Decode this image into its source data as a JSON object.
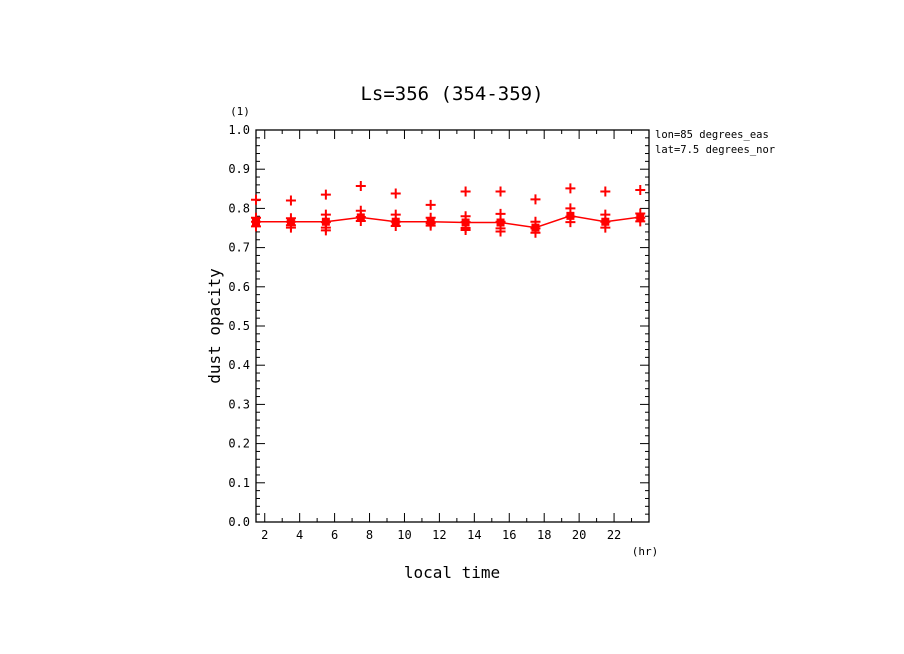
{
  "chart_data": {
    "type": "line",
    "title": "Ls=356 (354-359)",
    "xlabel": "local time",
    "ylabel": "dust opacity",
    "x_unit": "(hr)",
    "y_unit": "(1)",
    "annotations": [
      "lon=85 degrees_eas",
      "lat=7.5 degrees_nor"
    ],
    "xlim": [
      1.5,
      24.0
    ],
    "ylim": [
      0.0,
      1.0
    ],
    "xticks": [
      2,
      4,
      6,
      8,
      10,
      12,
      14,
      16,
      18,
      20,
      22
    ],
    "yticks": [
      0.0,
      0.1,
      0.2,
      0.3,
      0.4,
      0.5,
      0.6,
      0.7,
      0.8,
      0.9,
      1.0
    ],
    "grid": false,
    "line_color": "#ff0000",
    "series": [
      {
        "kind": "line",
        "x": [
          1.5,
          3.5,
          5.5,
          7.5,
          9.5,
          11.5,
          13.5,
          15.5,
          17.5,
          19.5,
          21.5,
          23.5
        ],
        "y": [
          0.766,
          0.766,
          0.766,
          0.777,
          0.766,
          0.766,
          0.764,
          0.764,
          0.751,
          0.781,
          0.766,
          0.778
        ]
      },
      {
        "kind": "scatter",
        "x": [
          1.5,
          1.5,
          1.5,
          1.5,
          3.5,
          3.5,
          3.5,
          3.5,
          3.5,
          5.5,
          5.5,
          5.5,
          5.5,
          5.5,
          7.5,
          7.5,
          7.5,
          7.5,
          9.5,
          9.5,
          9.5,
          9.5,
          11.5,
          11.5,
          11.5,
          11.5,
          13.5,
          13.5,
          13.5,
          13.5,
          13.5,
          15.5,
          15.5,
          15.5,
          15.5,
          15.5,
          17.5,
          17.5,
          17.5,
          17.5,
          19.5,
          19.5,
          19.5,
          19.5,
          21.5,
          21.5,
          21.5,
          21.5,
          23.5,
          23.5,
          23.5,
          23.5
        ],
        "y": [
          0.822,
          0.776,
          0.766,
          0.754,
          0.82,
          0.775,
          0.766,
          0.757,
          0.751,
          0.835,
          0.784,
          0.765,
          0.751,
          0.744,
          0.857,
          0.794,
          0.778,
          0.768,
          0.838,
          0.784,
          0.766,
          0.755,
          0.809,
          0.776,
          0.762,
          0.756,
          0.843,
          0.78,
          0.765,
          0.75,
          0.745,
          0.843,
          0.786,
          0.766,
          0.749,
          0.741,
          0.823,
          0.766,
          0.749,
          0.738,
          0.851,
          0.8,
          0.779,
          0.765,
          0.843,
          0.784,
          0.766,
          0.751,
          0.847,
          0.787,
          0.776,
          0.767
        ]
      }
    ]
  }
}
